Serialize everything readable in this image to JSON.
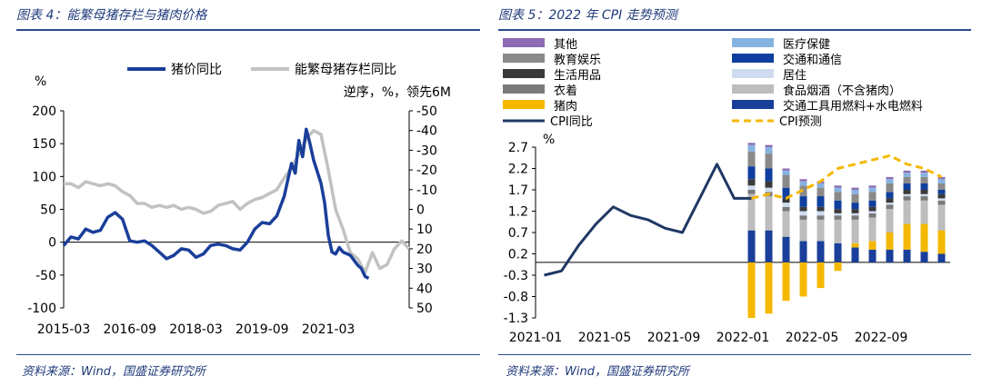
{
  "left": {
    "title": "图表 4：能繁母猪存栏与猪肉价格",
    "source": "资料来源：Wind，国盛证券研究所",
    "chart_data": {
      "type": "line",
      "ylabel_left": "%",
      "annotation_right": "逆序，%，领先6M",
      "ylim_left": [
        -100,
        200
      ],
      "ylim_right": [
        50,
        -50
      ],
      "yticks_left": [
        "200",
        "150",
        "100",
        "50",
        "0",
        "-50",
        "-100"
      ],
      "yticks_right": [
        "-50",
        "-40",
        "-30",
        "-20",
        "-10",
        "0",
        "10",
        "20",
        "30",
        "40",
        "50"
      ],
      "xticks": [
        "2015-03",
        "2016-09",
        "2018-03",
        "2019-09",
        "2021-03"
      ],
      "xtick_positions": [
        0,
        18,
        36,
        54,
        72
      ],
      "legend": [
        "猪价同比",
        "能繁母猪存栏同比"
      ],
      "series": [
        {
          "name": "猪价同比",
          "axis": "left",
          "color": "#1a3f9a",
          "points": [
            [
              0,
              -5
            ],
            [
              2,
              8
            ],
            [
              4,
              5
            ],
            [
              6,
              20
            ],
            [
              8,
              15
            ],
            [
              10,
              18
            ],
            [
              12,
              38
            ],
            [
              14,
              45
            ],
            [
              16,
              35
            ],
            [
              18,
              2
            ],
            [
              20,
              0
            ],
            [
              22,
              2
            ],
            [
              24,
              -5
            ],
            [
              26,
              -15
            ],
            [
              28,
              -25
            ],
            [
              30,
              -20
            ],
            [
              32,
              -10
            ],
            [
              34,
              -12
            ],
            [
              36,
              -23
            ],
            [
              38,
              -18
            ],
            [
              40,
              -5
            ],
            [
              42,
              -3
            ],
            [
              44,
              -5
            ],
            [
              46,
              -10
            ],
            [
              48,
              -12
            ],
            [
              50,
              0
            ],
            [
              52,
              20
            ],
            [
              54,
              30
            ],
            [
              56,
              28
            ],
            [
              58,
              40
            ],
            [
              60,
              70
            ],
            [
              62,
              120
            ],
            [
              63,
              105
            ],
            [
              64,
              155
            ],
            [
              65,
              130
            ],
            [
              66,
              172
            ],
            [
              67,
              150
            ],
            [
              68,
              125
            ],
            [
              70,
              90
            ],
            [
              71,
              60
            ],
            [
              72,
              10
            ],
            [
              73,
              -15
            ],
            [
              74,
              -18
            ],
            [
              75,
              -8
            ],
            [
              76,
              -15
            ],
            [
              78,
              -20
            ],
            [
              80,
              -35
            ],
            [
              81,
              -40
            ],
            [
              82,
              -52
            ],
            [
              83,
              -55
            ]
          ]
        },
        {
          "name": "能繁母猪存栏同比",
          "axis": "right",
          "color": "#c2c2c2",
          "points": [
            [
              0,
              -13
            ],
            [
              2,
              -13
            ],
            [
              4,
              -11
            ],
            [
              6,
              -14
            ],
            [
              8,
              -13
            ],
            [
              10,
              -12
            ],
            [
              12,
              -13
            ],
            [
              14,
              -12
            ],
            [
              16,
              -9
            ],
            [
              18,
              -7
            ],
            [
              20,
              -3
            ],
            [
              22,
              -3
            ],
            [
              24,
              -1
            ],
            [
              26,
              -2
            ],
            [
              28,
              -1
            ],
            [
              30,
              -2
            ],
            [
              32,
              0
            ],
            [
              34,
              -1
            ],
            [
              36,
              0
            ],
            [
              38,
              2
            ],
            [
              40,
              1
            ],
            [
              42,
              -2
            ],
            [
              44,
              -3
            ],
            [
              46,
              -4
            ],
            [
              48,
              0
            ],
            [
              50,
              -3
            ],
            [
              52,
              -5
            ],
            [
              54,
              -6
            ],
            [
              56,
              -8
            ],
            [
              58,
              -10
            ],
            [
              60,
              -16
            ],
            [
              62,
              -21
            ],
            [
              64,
              -28
            ],
            [
              66,
              -36
            ],
            [
              68,
              -40
            ],
            [
              70,
              -38
            ],
            [
              72,
              -20
            ],
            [
              74,
              0
            ],
            [
              76,
              10
            ],
            [
              78,
              22
            ],
            [
              80,
              25
            ],
            [
              82,
              32
            ],
            [
              84,
              22
            ],
            [
              86,
              30
            ],
            [
              88,
              28
            ],
            [
              90,
              20
            ],
            [
              92,
              16
            ],
            [
              94,
              20
            ]
          ]
        }
      ]
    }
  },
  "right": {
    "title": "图表 5：2022 年 CPI 走势预测",
    "source": "资料来源：Wind，国盛证券研究所",
    "chart_data": {
      "type": "bar",
      "ylabel": "%",
      "ylim": [
        -1.3,
        2.7
      ],
      "yticks": [
        "2.7",
        "2.2",
        "1.7",
        "1.2",
        "0.7",
        "0.2",
        "-0.3",
        "-0.8",
        "-1.3"
      ],
      "xticks": [
        "2021-01",
        "2021-05",
        "2021-09",
        "2022-01",
        "2022-05",
        "2022-09"
      ],
      "xtick_positions": [
        0,
        4,
        8,
        12,
        16,
        20
      ],
      "legend": [
        "其他",
        "医疗保健",
        "教育娱乐",
        "交通和通信",
        "生活用品",
        "居住",
        "衣着",
        "食品烟酒（不含猪肉）",
        "猪肉",
        "交通工具用燃料+水电燃料",
        "CPI同比",
        "CPI预测"
      ],
      "stack_keys": [
        "fuel",
        "pork",
        "food",
        "clothing",
        "housing",
        "goods",
        "transport",
        "education",
        "medical",
        "other"
      ],
      "stack_colors": {
        "fuel": "#1a3f9a",
        "pork": "#f5b800",
        "food": "#bdbdbd",
        "clothing": "#7a7a7a",
        "housing": "#cfdcf0",
        "goods": "#3a3a3a",
        "transport": "#0f3f9e",
        "education": "#8a8a8a",
        "medical": "#86b2e0",
        "other": "#8e6bb3"
      },
      "months": [
        12,
        13,
        14,
        15,
        16,
        17,
        18,
        19,
        20,
        21,
        22,
        23
      ],
      "stacks": [
        {
          "fuel": 0.75,
          "pork": -1.3,
          "food": 0.85,
          "clothing": 0.1,
          "housing": 0.1,
          "goods": 0.15,
          "transport": 0.3,
          "education": 0.35,
          "medical": 0.15,
          "other": 0.05
        },
        {
          "fuel": 0.75,
          "pork": -1.2,
          "food": 0.8,
          "clothing": 0.1,
          "housing": 0.1,
          "goods": 0.15,
          "transport": 0.3,
          "education": 0.35,
          "medical": 0.15,
          "other": 0.05
        },
        {
          "fuel": 0.6,
          "pork": -0.9,
          "food": 0.6,
          "clothing": 0.1,
          "housing": 0.1,
          "goods": 0.1,
          "transport": 0.25,
          "education": 0.3,
          "medical": 0.1,
          "other": 0.05
        },
        {
          "fuel": 0.5,
          "pork": -0.8,
          "food": 0.5,
          "clothing": 0.1,
          "housing": 0.1,
          "goods": 0.1,
          "transport": 0.25,
          "education": 0.25,
          "medical": 0.1,
          "other": 0.05
        },
        {
          "fuel": 0.5,
          "pork": -0.6,
          "food": 0.5,
          "clothing": 0.1,
          "housing": 0.1,
          "goods": 0.1,
          "transport": 0.25,
          "education": 0.2,
          "medical": 0.1,
          "other": 0.05
        },
        {
          "fuel": 0.45,
          "pork": -0.2,
          "food": 0.55,
          "clothing": 0.1,
          "housing": 0.05,
          "goods": 0.1,
          "transport": 0.2,
          "education": 0.2,
          "medical": 0.1,
          "other": 0.05
        },
        {
          "fuel": 0.35,
          "pork": 0.1,
          "food": 0.55,
          "clothing": 0.1,
          "housing": 0.05,
          "goods": 0.1,
          "transport": 0.15,
          "education": 0.2,
          "medical": 0.1,
          "other": 0.05
        },
        {
          "fuel": 0.3,
          "pork": 0.2,
          "food": 0.55,
          "clothing": 0.1,
          "housing": 0.05,
          "goods": 0.1,
          "transport": 0.15,
          "education": 0.2,
          "medical": 0.1,
          "other": 0.05
        },
        {
          "fuel": 0.3,
          "pork": 0.4,
          "food": 0.55,
          "clothing": 0.1,
          "housing": 0.05,
          "goods": 0.1,
          "transport": 0.15,
          "education": 0.2,
          "medical": 0.1,
          "other": 0.05
        },
        {
          "fuel": 0.3,
          "pork": 0.6,
          "food": 0.55,
          "clothing": 0.1,
          "housing": 0.05,
          "goods": 0.1,
          "transport": 0.15,
          "education": 0.15,
          "medical": 0.1,
          "other": 0.05
        },
        {
          "fuel": 0.25,
          "pork": 0.65,
          "food": 0.55,
          "clothing": 0.1,
          "housing": 0.05,
          "goods": 0.1,
          "transport": 0.15,
          "education": 0.15,
          "medical": 0.1,
          "other": 0.05
        },
        {
          "fuel": 0.2,
          "pork": 0.55,
          "food": 0.6,
          "clothing": 0.1,
          "housing": 0.05,
          "goods": 0.1,
          "transport": 0.1,
          "education": 0.15,
          "medical": 0.1,
          "other": 0.05
        }
      ],
      "cpi_actual": [
        [
          0,
          -0.3
        ],
        [
          1,
          -0.2
        ],
        [
          2,
          0.4
        ],
        [
          3,
          0.9
        ],
        [
          4,
          1.3
        ],
        [
          5,
          1.1
        ],
        [
          6,
          1.0
        ],
        [
          7,
          0.8
        ],
        [
          8,
          0.7
        ],
        [
          9,
          1.5
        ],
        [
          10,
          2.3
        ],
        [
          11,
          1.5
        ],
        [
          12,
          1.5
        ]
      ],
      "cpi_forecast": [
        [
          12,
          1.5
        ],
        [
          13,
          1.6
        ],
        [
          14,
          1.5
        ],
        [
          15,
          1.7
        ],
        [
          16,
          1.9
        ],
        [
          17,
          2.2
        ],
        [
          18,
          2.3
        ],
        [
          19,
          2.4
        ],
        [
          20,
          2.5
        ],
        [
          21,
          2.3
        ],
        [
          22,
          2.2
        ],
        [
          23,
          2.0
        ]
      ]
    }
  }
}
